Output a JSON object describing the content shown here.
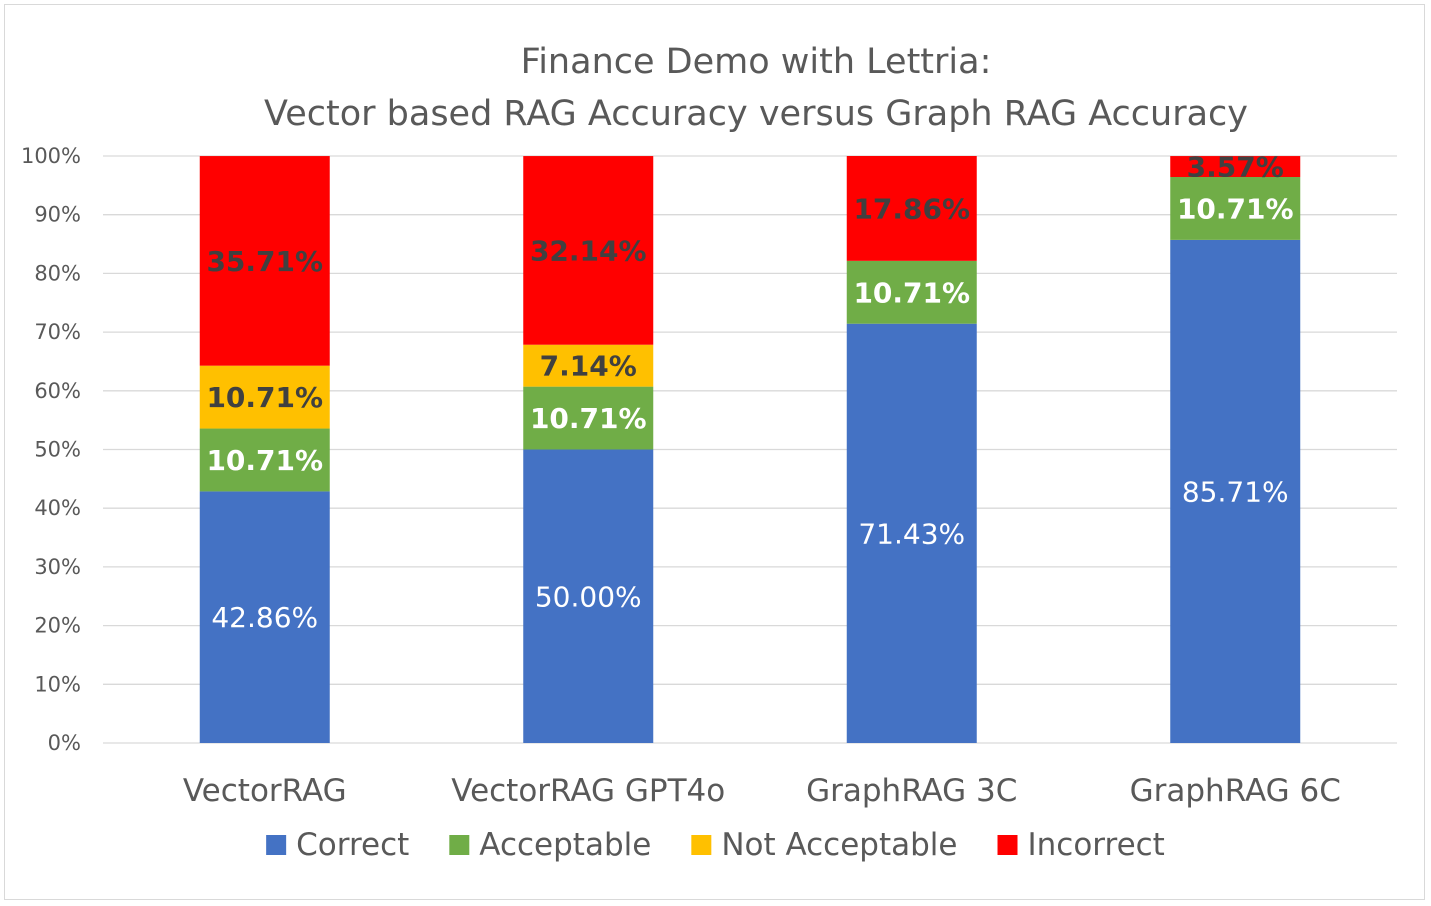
{
  "chart_data": {
    "type": "bar",
    "stacked": true,
    "percent": true,
    "title": [
      "Finance Demo with Lettria:",
      "Vector based RAG Accuracy versus Graph RAG Accuracy"
    ],
    "xlabel": "",
    "ylabel": "",
    "ylim": [
      0,
      100
    ],
    "y_ticks": [
      "0%",
      "10%",
      "20%",
      "30%",
      "40%",
      "50%",
      "60%",
      "70%",
      "80%",
      "90%",
      "100%"
    ],
    "grid": true,
    "legend_position": "bottom",
    "categories": [
      "VectorRAG",
      "VectorRAG GPT4o",
      "GraphRAG 3C",
      "GraphRAG 6C"
    ],
    "series": [
      {
        "name": "Correct",
        "color": "#4472C4",
        "label_color": "#ffffff",
        "label_bold": false,
        "values": [
          42.86,
          50.0,
          71.43,
          85.71
        ],
        "labels": [
          "42.86%",
          "50.00%",
          "71.43%",
          "85.71%"
        ]
      },
      {
        "name": "Acceptable",
        "color": "#70AD47",
        "label_color": "#ffffff",
        "label_bold": true,
        "values": [
          10.71,
          10.71,
          10.71,
          10.71
        ],
        "labels": [
          "10.71%",
          "10.71%",
          "10.71%",
          "10.71%"
        ]
      },
      {
        "name": "Not Acceptable",
        "color": "#FFC000",
        "label_color": "#404040",
        "label_bold": true,
        "values": [
          10.71,
          7.14,
          0,
          0
        ],
        "labels": [
          "10.71%",
          "7.14%",
          "",
          ""
        ]
      },
      {
        "name": "Incorrect",
        "color": "#FF0000",
        "label_color": "#404040",
        "label_bold": true,
        "values": [
          35.71,
          32.14,
          17.86,
          3.57
        ],
        "labels": [
          "35.71%",
          "32.14%",
          "17.86%",
          "3.57%"
        ]
      }
    ],
    "gridline_color": "#d9d9d9",
    "text_color": "#595959"
  }
}
